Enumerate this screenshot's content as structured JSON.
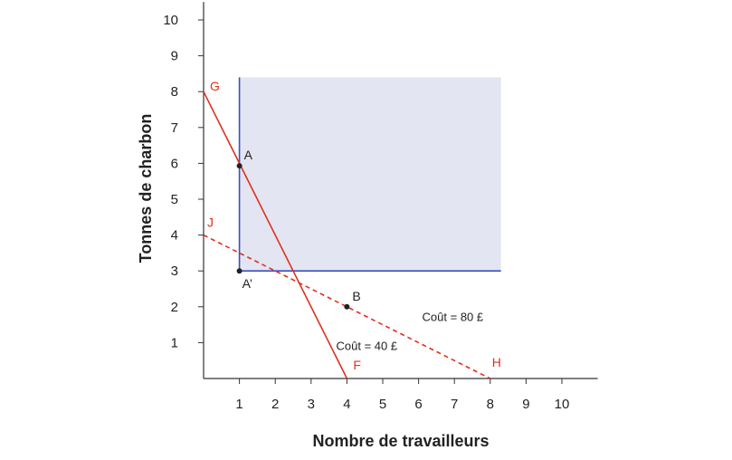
{
  "chart_data": {
    "type": "line",
    "xlabel": "Nombre de travailleurs",
    "ylabel": "Tonnes de charbon",
    "xlim": [
      0,
      11
    ],
    "ylim": [
      0,
      10.5
    ],
    "x_ticks": [
      "1",
      "2",
      "3",
      "4",
      "5",
      "6",
      "7",
      "8",
      "9",
      "10"
    ],
    "y_ticks": [
      "1",
      "2",
      "3",
      "4",
      "5",
      "6",
      "7",
      "8",
      "9",
      "10"
    ],
    "grid": false,
    "colors": {
      "isocost": "#e0301e",
      "region_border": "#3b4fc4",
      "region_fill": "#e3e5f2",
      "axis": "#333333",
      "point": "#222222"
    },
    "region": {
      "x0": 1,
      "y0": 3,
      "x1": 8.3,
      "y1": 8.4
    },
    "series": [
      {
        "label_start": "G",
        "label_end": "F",
        "cost_label": "Coût = 40 £",
        "style": "solid",
        "x": [
          0,
          4
        ],
        "y": [
          8,
          0
        ]
      },
      {
        "label_start": "J",
        "label_end": "H",
        "cost_label": "Coût = 80 £",
        "style": "dashed",
        "x": [
          0,
          8
        ],
        "y": [
          4,
          0
        ]
      }
    ],
    "points": [
      {
        "label": "A",
        "x": 1,
        "y": 5.93
      },
      {
        "label": "A’",
        "x": 1,
        "y": 3
      },
      {
        "label": "B",
        "x": 4,
        "y": 2
      }
    ]
  }
}
